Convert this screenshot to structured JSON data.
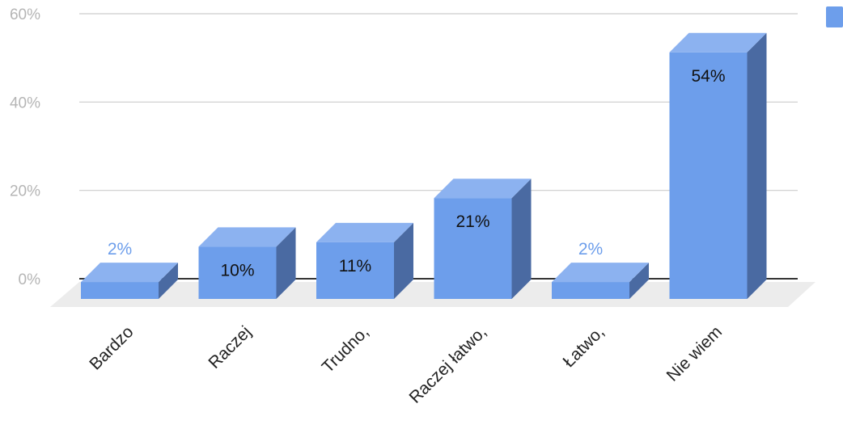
{
  "chart_data": {
    "type": "bar",
    "style": "3d",
    "categories": [
      "Bardzo",
      "Raczej",
      "Trudno,",
      "Raczej łatwo,",
      "Łatwo,",
      "Nie wiem"
    ],
    "values": [
      2,
      10,
      11,
      21,
      2,
      54
    ],
    "data_labels": [
      "2%",
      "10%",
      "11%",
      "21%",
      "2%",
      "54%"
    ],
    "ylim": [
      0,
      60
    ],
    "yticks": [
      "0%",
      "20%",
      "40%",
      "60%"
    ],
    "grid": true,
    "legend": "top-right",
    "colors": {
      "bar_front": "#6d9eeb",
      "bar_top": "#8cb2f0",
      "bar_side": "#4a6aa2",
      "label_outside": "#6d9eeb",
      "label_inside": "#111111",
      "grid": "#cccccc",
      "floor": "#ececec"
    }
  }
}
